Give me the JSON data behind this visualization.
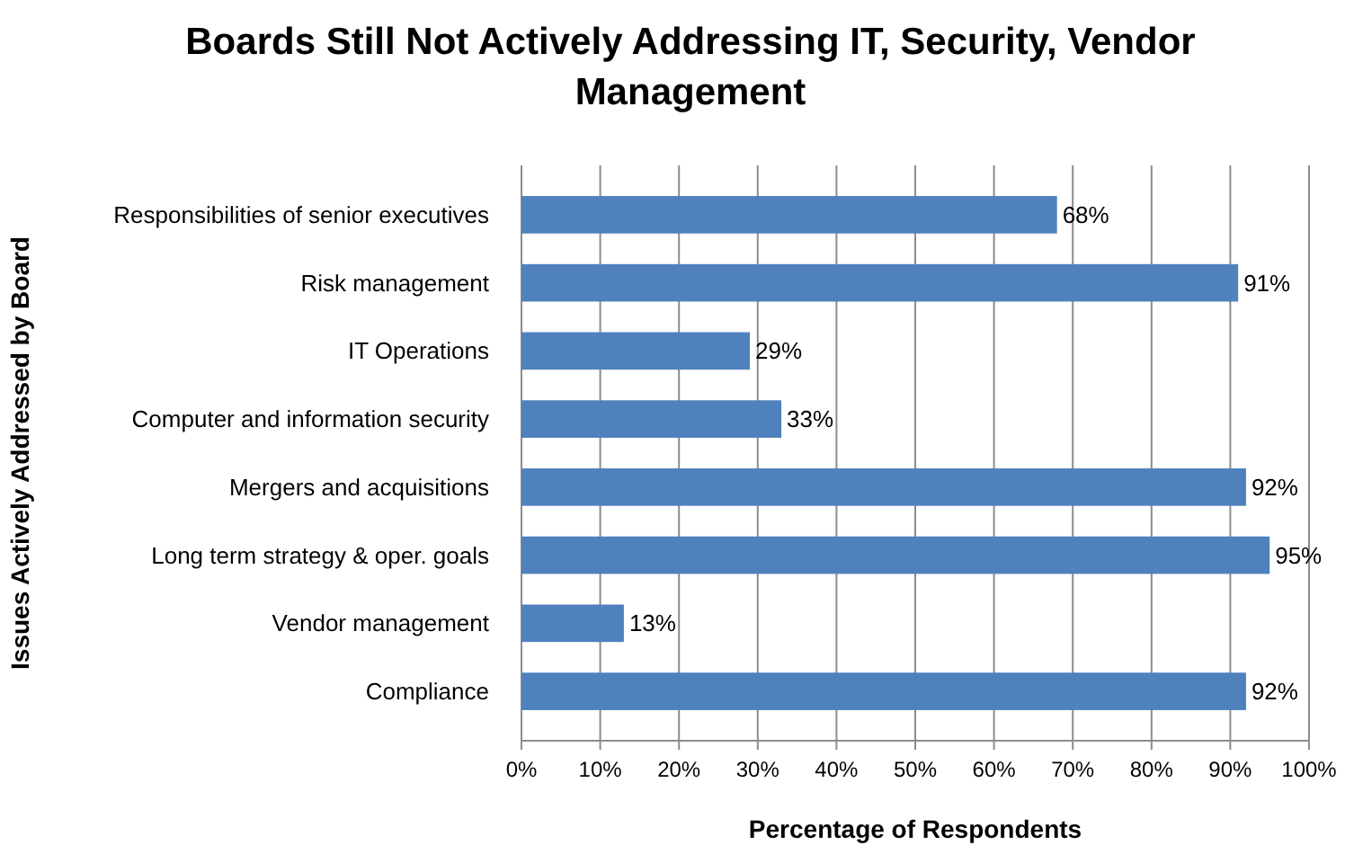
{
  "chart_data": {
    "type": "bar",
    "orientation": "horizontal",
    "title": "Boards Still Not Actively Addressing IT, Security, Vendor Management",
    "xlabel": "Percentage of Respondents",
    "ylabel": "Issues Actively Addressed by Board",
    "categories": [
      "Responsibilities of senior executives",
      "Risk management",
      "IT Operations",
      "Computer and information security",
      "Mergers and acquisitions",
      "Long term strategy & oper. goals",
      "Vendor management",
      "Compliance"
    ],
    "values": [
      68,
      91,
      29,
      33,
      92,
      95,
      13,
      92
    ],
    "value_labels": [
      "68%",
      "91%",
      "29%",
      "33%",
      "92%",
      "95%",
      "13%",
      "92%"
    ],
    "color": "#4f81bd",
    "xlim": [
      0,
      100
    ],
    "xticks": [
      {
        "value": 0,
        "label": "0%"
      },
      {
        "value": 10,
        "label": "10%"
      },
      {
        "value": 20,
        "label": "20%"
      },
      {
        "value": 30,
        "label": "30%"
      },
      {
        "value": 40,
        "label": "40%"
      },
      {
        "value": 50,
        "label": "50%"
      },
      {
        "value": 60,
        "label": "60%"
      },
      {
        "value": 70,
        "label": "70%"
      },
      {
        "value": 80,
        "label": "80%"
      },
      {
        "value": 90,
        "label": "90%"
      },
      {
        "value": 100,
        "label": "100%"
      }
    ],
    "grid": "x"
  }
}
